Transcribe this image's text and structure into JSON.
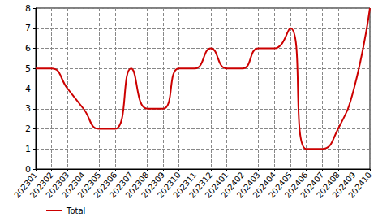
{
  "chart_data": {
    "type": "line",
    "categories": [
      "202301",
      "202302",
      "202303",
      "202304",
      "202305",
      "202306",
      "202307",
      "202308",
      "202309",
      "202310",
      "202311",
      "202312",
      "202401",
      "202402",
      "202403",
      "202404",
      "202405",
      "202406",
      "202407",
      "202408",
      "202409",
      "202410"
    ],
    "series": [
      {
        "name": "Total",
        "color": "#cc0000",
        "values": [
          5,
          5,
          4,
          3,
          2,
          2,
          5,
          3,
          3,
          5,
          5,
          6,
          5,
          5,
          6,
          6,
          7,
          1,
          1,
          2,
          4,
          8
        ]
      }
    ],
    "ylim": [
      0,
      8
    ],
    "yticks": [
      0,
      1,
      2,
      3,
      4,
      5,
      6,
      7,
      8
    ],
    "grid": true,
    "legend": "lower left",
    "line_style": "smooth"
  }
}
